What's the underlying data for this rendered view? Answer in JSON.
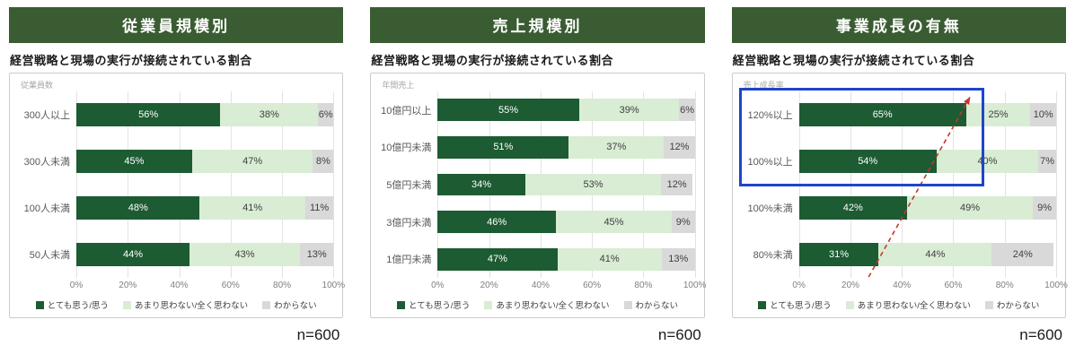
{
  "colors": {
    "header_bg": "#3a5c32",
    "series": [
      "#1d5b33",
      "#d9ecd4",
      "#d9d9d9"
    ],
    "segment_label_on_dark": "#ffffff",
    "segment_label_on_light": "#404040",
    "highlight_border": "#1f45c8",
    "trend_line": "#c0392b"
  },
  "chart_data": [
    {
      "type": "bar",
      "orientation": "horizontal",
      "stacked": true,
      "header": "従業員規模別",
      "title": "経営戦略と現場の実行が接続されている割合",
      "axis_label": "従業員数",
      "categories": [
        "300人以上",
        "300人未満",
        "100人未満",
        "50人未満"
      ],
      "series": [
        {
          "name": "とても思う/思う",
          "values": [
            56,
            45,
            48,
            44
          ]
        },
        {
          "name": "あまり思わない/全く思わない",
          "values": [
            38,
            47,
            41,
            43
          ]
        },
        {
          "name": "わからない",
          "values": [
            6,
            8,
            11,
            13
          ]
        }
      ],
      "x_ticks": [
        "0%",
        "20%",
        "40%",
        "60%",
        "80%",
        "100%"
      ],
      "xlim": [
        0,
        100
      ],
      "grid": true,
      "legend_position": "bottom",
      "n_label": "n=600"
    },
    {
      "type": "bar",
      "orientation": "horizontal",
      "stacked": true,
      "header": "売上規模別",
      "title": "経営戦略と現場の実行が接続されている割合",
      "axis_label": "年間売上",
      "categories": [
        "10億円以上",
        "10億円未満",
        "5億円未満",
        "3億円未満",
        "1億円未満"
      ],
      "series": [
        {
          "name": "とても思う/思う",
          "values": [
            55,
            51,
            34,
            46,
            47
          ]
        },
        {
          "name": "あまり思わない/全く思わない",
          "values": [
            39,
            37,
            53,
            45,
            41
          ]
        },
        {
          "name": "わからない",
          "values": [
            6,
            12,
            12,
            9,
            13
          ]
        }
      ],
      "x_ticks": [
        "0%",
        "20%",
        "40%",
        "60%",
        "80%",
        "100%"
      ],
      "xlim": [
        0,
        100
      ],
      "grid": true,
      "legend_position": "bottom",
      "n_label": "n=600"
    },
    {
      "type": "bar",
      "orientation": "horizontal",
      "stacked": true,
      "header": "事業成長の有無",
      "title": "経営戦略と現場の実行が接続されている割合",
      "axis_label": "売上成長率",
      "categories": [
        "120%以上",
        "100%以上",
        "100%未満",
        "80%未満"
      ],
      "series": [
        {
          "name": "とても思う/思う",
          "values": [
            65,
            54,
            42,
            31
          ]
        },
        {
          "name": "あまり思わない/全く思わない",
          "values": [
            25,
            40,
            49,
            44
          ]
        },
        {
          "name": "わからない",
          "values": [
            10,
            7,
            9,
            24
          ]
        }
      ],
      "x_ticks": [
        "0%",
        "20%",
        "40%",
        "60%",
        "80%",
        "100%"
      ],
      "xlim": [
        0,
        100
      ],
      "grid": true,
      "legend_position": "bottom",
      "annotations": {
        "highlight_rows": [
          0,
          1
        ],
        "trend_arrow": true
      },
      "n_label": "n=600"
    }
  ]
}
